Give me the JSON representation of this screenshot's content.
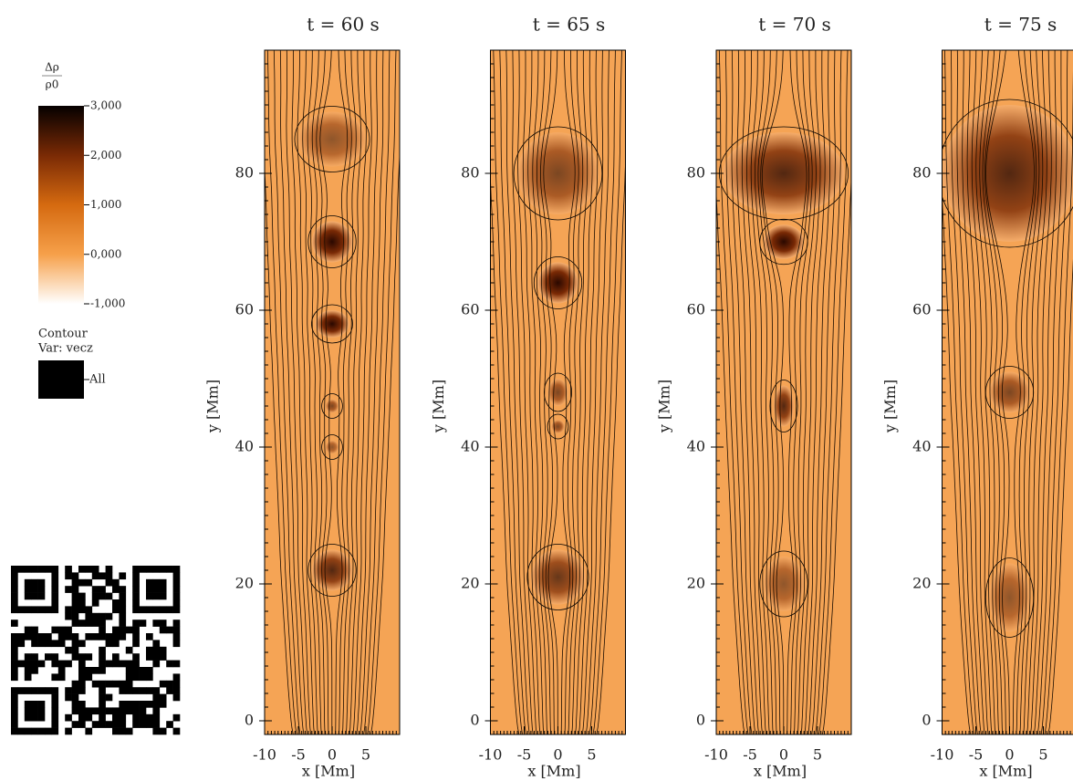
{
  "chart_data": [
    {
      "type": "field-map",
      "title": "t = 60 s",
      "xlabel": "x [Mm]",
      "ylabel": "y [Mm]",
      "xlim": [
        -10,
        10
      ],
      "ylim": [
        -2,
        98
      ],
      "xticks": [
        -10,
        -5,
        0,
        5
      ],
      "yticks": [
        0,
        20,
        40,
        60,
        80
      ]
    },
    {
      "type": "field-map",
      "title": "t = 65 s",
      "xlabel": "x [Mm]",
      "ylabel": "y [Mm]",
      "xlim": [
        -10,
        10
      ],
      "ylim": [
        -2,
        98
      ],
      "xticks": [
        -10,
        -5,
        0,
        5
      ],
      "yticks": [
        0,
        20,
        40,
        60,
        80
      ]
    },
    {
      "type": "field-map",
      "title": "t = 70 s",
      "xlabel": "x [Mm]",
      "ylabel": "y [Mm]",
      "xlim": [
        -10,
        10
      ],
      "ylim": [
        -2,
        98
      ],
      "xticks": [
        -10,
        -5,
        0,
        5
      ],
      "yticks": [
        0,
        20,
        40,
        60,
        80
      ]
    },
    {
      "type": "field-map",
      "title": "t = 75 s",
      "xlabel": "x [Mm]",
      "ylabel": "y [Mm]",
      "xlim": [
        -10,
        10
      ],
      "ylim": [
        -2,
        98
      ],
      "xticks": [
        -10,
        -5,
        0,
        5
      ],
      "yticks": [
        0,
        20,
        40,
        60,
        80
      ]
    }
  ],
  "colorbar": {
    "label_numerator": "Δρ",
    "label_denominator": "ρ0",
    "lim": [
      -1,
      3
    ],
    "ticks": [
      {
        "value": 3,
        "label": "3,000"
      },
      {
        "value": 2,
        "label": "2,000"
      },
      {
        "value": 1,
        "label": "1,000"
      },
      {
        "value": 0,
        "label": "0,000"
      },
      {
        "value": -1,
        "label": "-1,000"
      }
    ]
  },
  "contour_legend": {
    "title": "Contour",
    "variable": "Var: vecz",
    "level": "All"
  }
}
